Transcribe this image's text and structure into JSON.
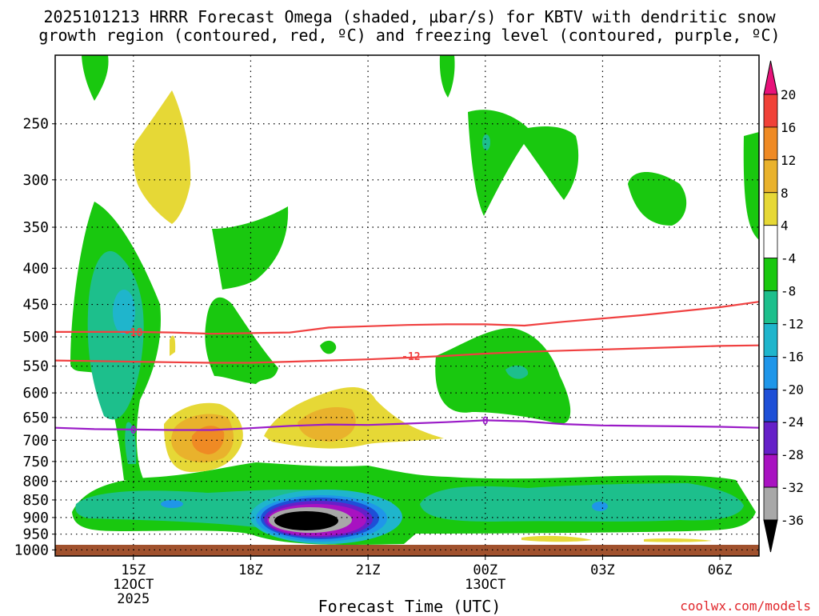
{
  "title_line1": "2025101213 HRRR Forecast Omega (shaded, µbar/s) for KBTV with dendritic snow",
  "title_line2": "growth region (contoured, red, ºC) and freezing level (contoured, purple, ºC)",
  "xlabel": "Forecast Time (UTC)",
  "credit": "coolwx.com/models",
  "chart_data": {
    "type": "time-height contour",
    "y_axis": {
      "quantity": "pressure (mb)",
      "ticks": [
        250,
        300,
        350,
        400,
        450,
        500,
        550,
        600,
        650,
        700,
        750,
        800,
        850,
        900,
        950,
        1000
      ],
      "range": [
        200,
        1020
      ],
      "scale": "log"
    },
    "x_axis": {
      "ticks": [
        {
          "hour": 15,
          "label": "15Z",
          "sub1": "12OCT",
          "sub2": "2025"
        },
        {
          "hour": 18,
          "label": "18Z",
          "sub1": "",
          "sub2": ""
        },
        {
          "hour": 21,
          "label": "21Z",
          "sub1": "",
          "sub2": ""
        },
        {
          "hour": 24,
          "label": "00Z",
          "sub1": "13OCT",
          "sub2": ""
        },
        {
          "hour": 27,
          "label": "03Z",
          "sub1": "",
          "sub2": ""
        },
        {
          "hour": 30,
          "label": "06Z",
          "sub1": "",
          "sub2": ""
        }
      ],
      "range": [
        13,
        31
      ]
    },
    "grid": true,
    "colorbar": {
      "labels": [
        "20",
        "16",
        "12",
        "8",
        "4",
        "-4",
        "-8",
        "-12",
        "-16",
        "-20",
        "-24",
        "-28",
        "-32",
        "-36"
      ],
      "colors": [
        "#e8127a",
        "#f04137",
        "#ef8a24",
        "#e9b22c",
        "#e6d836",
        "#ffffff",
        "#19c80f",
        "#1dbf8c",
        "#1fb5cc",
        "#1f96e9",
        "#1e4fd7",
        "#6520c8",
        "#a812c1",
        "#a8a8a8",
        "#000000"
      ]
    },
    "contours": [
      {
        "name": "dgz_top",
        "label": "-18",
        "color": "#f04040",
        "points": [
          [
            13,
            492
          ],
          [
            14,
            492
          ],
          [
            15,
            492
          ],
          [
            16,
            493
          ],
          [
            17,
            495
          ],
          [
            18,
            494
          ],
          [
            19,
            493
          ],
          [
            20,
            485
          ],
          [
            21,
            483
          ],
          [
            22,
            481
          ],
          [
            23,
            480
          ],
          [
            24,
            480
          ],
          [
            25,
            482
          ],
          [
            26,
            476
          ],
          [
            27,
            471
          ],
          [
            28,
            466
          ],
          [
            29,
            460
          ],
          [
            30,
            454
          ],
          [
            31,
            446
          ]
        ]
      },
      {
        "name": "dgz_bottom",
        "label": "-12",
        "color": "#f04040",
        "points": [
          [
            13,
            540
          ],
          [
            14,
            541
          ],
          [
            15,
            542
          ],
          [
            16,
            543
          ],
          [
            17,
            544
          ],
          [
            18,
            544
          ],
          [
            19,
            542
          ],
          [
            20,
            540
          ],
          [
            21,
            538
          ],
          [
            22,
            535
          ],
          [
            23,
            532
          ],
          [
            24,
            528
          ],
          [
            25,
            525
          ],
          [
            26,
            523
          ],
          [
            27,
            521
          ],
          [
            28,
            519
          ],
          [
            29,
            517
          ],
          [
            30,
            515
          ],
          [
            31,
            514
          ]
        ]
      },
      {
        "name": "freezing_level",
        "label": "0",
        "color": "#9a1bc7",
        "points": [
          [
            13,
            672
          ],
          [
            14,
            675
          ],
          [
            15,
            676
          ],
          [
            16,
            677
          ],
          [
            17,
            677
          ],
          [
            18,
            673
          ],
          [
            19,
            668
          ],
          [
            20,
            665
          ],
          [
            21,
            666
          ],
          [
            22,
            663
          ],
          [
            23,
            660
          ],
          [
            24,
            656
          ],
          [
            25,
            658
          ],
          [
            26,
            664
          ],
          [
            27,
            667
          ],
          [
            28,
            668
          ],
          [
            29,
            669
          ],
          [
            30,
            670
          ],
          [
            31,
            672
          ]
        ]
      }
    ],
    "contour_labels": [
      {
        "text": "-18",
        "hour": 15.0,
        "p": 492
      },
      {
        "text": "-12",
        "hour": 22.1,
        "p": 532
      },
      {
        "text": "0",
        "hour": 15.0,
        "p": 676
      },
      {
        "text": "0",
        "hour": 24.0,
        "p": 656
      }
    ],
    "shaded_regions": [
      {
        "value": "-4",
        "color": "#19c80f",
        "region": "low-level ascent layer 800-1000 mb, full period"
      },
      {
        "value": "-12",
        "color": "#1dbf8c",
        "region": "880-960 mb band"
      },
      {
        "value": "-36",
        "color": "#000000",
        "region": "core near 19-20Z, 930-950 mb"
      },
      {
        "value": "-8",
        "color": "#1dbf8c",
        "region": "14-15Z column 380-560 mb"
      },
      {
        "value": "4",
        "color": "#e6d836",
        "region": "16-17Z and 19-21Z near 650-750 mb"
      },
      {
        "value": "12",
        "color": "#ef8a24",
        "region": "17Z near 720 mb"
      }
    ]
  }
}
